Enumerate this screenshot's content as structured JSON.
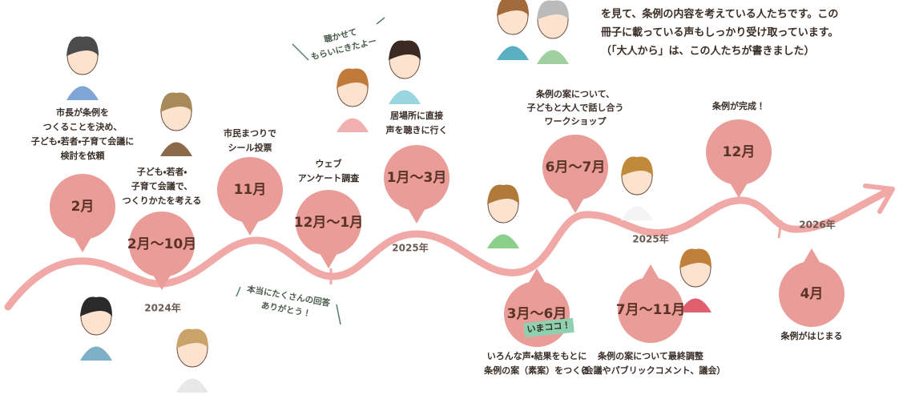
{
  "intro": {
    "lines": [
      "を見て、条例の内容を考えている人たちです。この",
      "冊子に載っている声もしっかり受け取っています。",
      "（「大人から」は、この人たちが書きました）"
    ]
  },
  "milestones": [
    {
      "period": "2月",
      "description": [
        "市長が条例を",
        "つくることを決め、",
        "子ども・若者・子育て会議に",
        "検討を依頼"
      ]
    },
    {
      "period": "2月～10月",
      "description": [
        "子ども・若者・",
        "子育て会議で、",
        "つくりかたを考える"
      ]
    },
    {
      "period": "11月",
      "description": [
        "市民まつりで",
        "シール投票"
      ]
    },
    {
      "period": "12月～1月",
      "description": [
        "ウェブ",
        "アンケート調査"
      ]
    },
    {
      "period": "1月～3月",
      "description": [
        "居場所に直接",
        "声を聴きに行く"
      ]
    },
    {
      "period": "3月～6月",
      "description": [
        "いろんな声・結果をもとに",
        "条例の案（素案）をつくる"
      ],
      "badge": "いまココ！"
    },
    {
      "period": "6月～7月",
      "description": [
        "条例の案について、",
        "子どもと大人で話し合う",
        "ワークショップ"
      ]
    },
    {
      "period": "7月～11月",
      "description": [
        "条例の案について最終調整",
        "（会議やパブリックコメント、議会）"
      ]
    },
    {
      "period": "12月",
      "description": [
        "条例が完成！"
      ]
    },
    {
      "period": "4月",
      "description": [
        "条例がはじまる"
      ]
    }
  ],
  "years": [
    "2024年",
    "2025年",
    "2025年",
    "2026年"
  ],
  "callouts": [
    {
      "lines": [
        "聴かせて",
        "もらいにきたよー"
      ]
    },
    {
      "lines": [
        "本当にたくさんの回答",
        "ありがとう！"
      ]
    }
  ]
}
